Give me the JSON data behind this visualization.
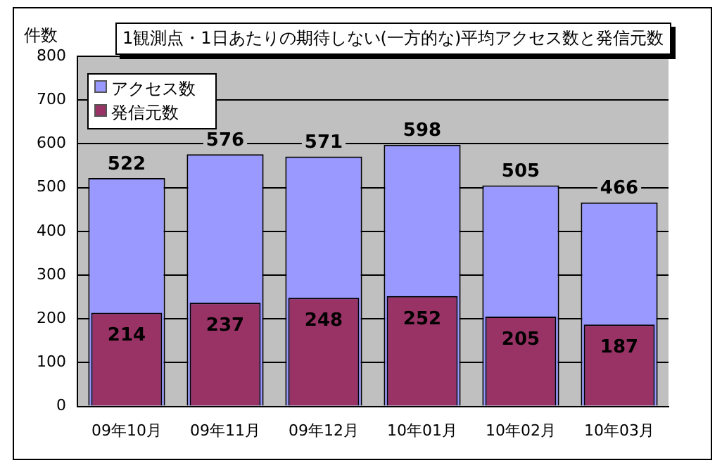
{
  "chart_data": {
    "type": "bar",
    "title": "1観測点・1日あたりの期待しない(一方的な)平均アクセス数と発信元数",
    "ylabel": "件数",
    "categories": [
      "09年10月",
      "09年11月",
      "09年12月",
      "10年01月",
      "10年02月",
      "10年03月"
    ],
    "series": [
      {
        "name": "アクセス数",
        "color": "#9999ff",
        "values": [
          522,
          576,
          571,
          598,
          505,
          466
        ]
      },
      {
        "name": "発信元数",
        "color": "#993366",
        "values": [
          214,
          237,
          248,
          252,
          205,
          187
        ]
      }
    ],
    "ylim": [
      0,
      800
    ],
    "yticks": [
      0,
      100,
      200,
      300,
      400,
      500,
      600,
      700,
      800
    ],
    "grid": "y",
    "legend": "top left",
    "data_labels": true
  }
}
